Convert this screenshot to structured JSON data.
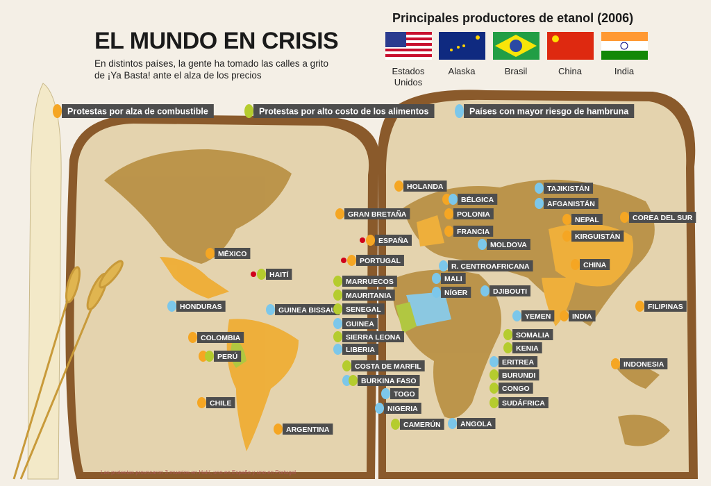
{
  "header": {
    "title": "EL MUNDO EN CRISIS",
    "subtitle": "En distintos países, la gente ha tomado las calles a grito de ¡Ya Basta! ante el alza de los precios"
  },
  "ethanol": {
    "title": "Principales productores de etanol  (2006)",
    "producers": [
      "Estados Unidos",
      "Alaska",
      "Brasil",
      "China",
      "India"
    ]
  },
  "legend": [
    {
      "label": "Protestas por alza de combustible",
      "color": "#f5a623"
    },
    {
      "label": "Protestas por alto costo de los alimentos",
      "color": "#b5cc2e"
    },
    {
      "label": "Países con mayor riesgo de hambruna",
      "color": "#7cc7ea"
    }
  ],
  "countries": [
    {
      "label": "HOLANDA",
      "markers": [
        0
      ]
    },
    {
      "label": "BÉLGICA",
      "markers": [
        0,
        2
      ]
    },
    {
      "label": "POLONIA",
      "markers": [
        0
      ]
    },
    {
      "label": "FRANCIA",
      "markers": [
        0
      ]
    },
    {
      "label": "GRAN BRETAÑA",
      "markers": [
        0
      ]
    },
    {
      "label": "ESPAÑA",
      "markers": [
        0
      ],
      "death": true
    },
    {
      "label": "PORTUGAL",
      "markers": [
        0
      ],
      "death": true
    },
    {
      "label": "MÉXICO",
      "markers": [
        0
      ]
    },
    {
      "label": "HAITÍ",
      "markers": [
        1
      ],
      "death": true
    },
    {
      "label": "HONDURAS",
      "markers": [
        2
      ]
    },
    {
      "label": "GUINEA BISSAU",
      "markers": [
        2
      ]
    },
    {
      "label": "COLOMBIA",
      "markers": [
        0
      ]
    },
    {
      "label": "PERÚ",
      "markers": [
        0,
        1
      ]
    },
    {
      "label": "CHILE",
      "markers": [
        0
      ]
    },
    {
      "label": "ARGENTINA",
      "markers": [
        0
      ]
    },
    {
      "label": "MARRUECOS",
      "markers": [
        1
      ]
    },
    {
      "label": "MAURITANIA",
      "markers": [
        1
      ]
    },
    {
      "label": "SENEGAL",
      "markers": [
        1
      ]
    },
    {
      "label": "GUINEA",
      "markers": [
        2
      ]
    },
    {
      "label": "SIERRA LEONA",
      "markers": [
        1
      ]
    },
    {
      "label": "LIBERIA",
      "markers": [
        2
      ]
    },
    {
      "label": "COSTA DE MARFIL",
      "markers": [
        1
      ]
    },
    {
      "label": "BURKINA FASO",
      "markers": [
        2,
        1
      ]
    },
    {
      "label": "TOGO",
      "markers": [
        2
      ]
    },
    {
      "label": "NIGERIA",
      "markers": [
        2
      ]
    },
    {
      "label": "CAMERÚN",
      "markers": [
        1
      ]
    },
    {
      "label": "ANGOLA",
      "markers": [
        2
      ]
    },
    {
      "label": "SUDÁFRICA",
      "markers": [
        1
      ]
    },
    {
      "label": "CONGO",
      "markers": [
        1
      ]
    },
    {
      "label": "BURUNDI",
      "markers": [
        1
      ]
    },
    {
      "label": "ERITREA",
      "markers": [
        2
      ]
    },
    {
      "label": "KENIA",
      "markers": [
        1
      ]
    },
    {
      "label": "SOMALIA",
      "markers": [
        1
      ]
    },
    {
      "label": "YEMEN",
      "markers": [
        2
      ]
    },
    {
      "label": "DJIBOUTI",
      "markers": [
        2
      ]
    },
    {
      "label": "NÍGER",
      "markers": [
        2
      ]
    },
    {
      "label": "MALI",
      "markers": [
        2
      ]
    },
    {
      "label": "R. CENTROAFRICANA",
      "markers": [
        2
      ]
    },
    {
      "label": "MOLDOVA",
      "markers": [
        2
      ]
    },
    {
      "label": "TAJIKISTÁN",
      "markers": [
        2
      ]
    },
    {
      "label": "AFGANISTÁN",
      "markers": [
        2
      ]
    },
    {
      "label": "NEPAL",
      "markers": [
        0
      ]
    },
    {
      "label": "KIRGUISTÁN",
      "markers": [
        0
      ]
    },
    {
      "label": "COREA DEL SUR",
      "markers": [
        0
      ]
    },
    {
      "label": "CHINA",
      "markers": [
        0
      ]
    },
    {
      "label": "INDIA",
      "markers": [
        0
      ]
    },
    {
      "label": "FILIPINAS",
      "markers": [
        0
      ]
    },
    {
      "label": "INDONESIA",
      "markers": [
        0
      ]
    }
  ],
  "footnote": "Las protestas provocaron 3 muertos en Haití, uno en España y uno en Portugal"
}
